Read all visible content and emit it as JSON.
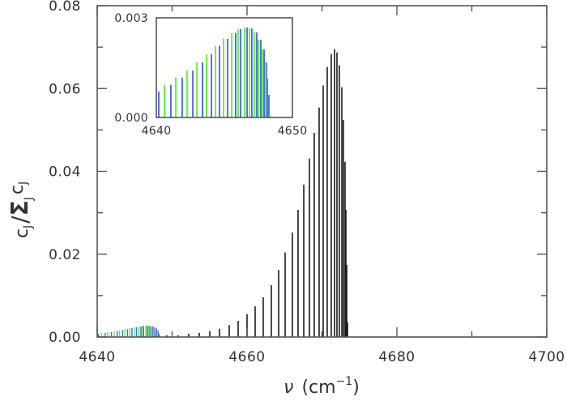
{
  "chart_data": {
    "type": "bar",
    "title": "",
    "xlabel": "ν (cm⁻¹)",
    "ylabel": "c_J / Σ_J c_J",
    "xlim": [
      4640,
      4700
    ],
    "ylim": [
      0.0,
      0.08
    ],
    "x_ticks": [
      4640,
      4660,
      4680,
      4700
    ],
    "x_tick_labels": [
      "4640",
      "4660",
      "4680",
      "4700"
    ],
    "x_minor_ticks": [
      4650,
      4670,
      4690
    ],
    "y_ticks": [
      0.0,
      0.02,
      0.04,
      0.06,
      0.08
    ],
    "y_tick_labels": [
      "0.00",
      "0.02",
      "0.04",
      "0.06",
      "0.08"
    ],
    "y_minor_ticks": [
      0.01,
      0.03,
      0.05,
      0.07
    ],
    "grid": false,
    "legend": null,
    "colors": {
      "main": "#1a1a1a",
      "series_blue": "#4a5ef0",
      "series_green": "#5aef3a",
      "overlap": "#1f8a6a",
      "axis": "#555555"
    },
    "series": [
      {
        "name": "main",
        "color": "#1a1a1a",
        "x": [
          4649.3,
          4650.81,
          4652.22,
          4653.62,
          4655.03,
          4656.32,
          4657.62,
          4658.81,
          4660.0,
          4661.08,
          4662.16,
          4663.24,
          4664.22,
          4665.08,
          4666.05,
          4666.81,
          4667.57,
          4668.32,
          4668.97,
          4669.62,
          4670.16,
          4670.7,
          4671.24,
          4671.68,
          4672.0,
          4672.32,
          4672.65,
          4672.86,
          4673.08,
          4673.19,
          4673.3,
          4673.41
        ],
        "values": [
          0.0004,
          0.0004,
          0.0008,
          0.001,
          0.0014,
          0.002,
          0.0029,
          0.0039,
          0.0055,
          0.0074,
          0.0096,
          0.0125,
          0.0162,
          0.0204,
          0.0252,
          0.0307,
          0.0368,
          0.0431,
          0.0493,
          0.0554,
          0.0607,
          0.0652,
          0.0683,
          0.0695,
          0.0687,
          0.0656,
          0.0603,
          0.0524,
          0.0423,
          0.0307,
          0.0174,
          0.0035
        ]
      },
      {
        "name": "blue",
        "color": "#4a5ef0",
        "x": [
          4640.18,
          4641.07,
          4641.9,
          4642.68,
          4643.39,
          4644.05,
          4644.64,
          4645.24,
          4645.83,
          4646.19,
          4646.67,
          4647.02,
          4647.38,
          4647.68,
          4647.92,
          4648.1,
          4648.15,
          4648.27
        ],
        "values": [
          0.00078,
          0.00098,
          0.0012,
          0.00141,
          0.00166,
          0.0019,
          0.00215,
          0.00237,
          0.00254,
          0.00266,
          0.00271,
          0.00268,
          0.00256,
          0.00234,
          0.00205,
          0.00166,
          0.00117,
          0.00068
        ]
      },
      {
        "name": "green",
        "color": "#5aef3a",
        "x": [
          4640.6,
          4641.43,
          4642.26,
          4642.98,
          4643.69,
          4644.35,
          4644.94,
          4645.54,
          4646.01,
          4646.49,
          4646.85,
          4647.2,
          4647.5,
          4647.8,
          4648.04,
          4648.33
        ],
        "values": [
          0.00098,
          0.0012,
          0.00141,
          0.00166,
          0.0019,
          0.00215,
          0.00237,
          0.00254,
          0.00266,
          0.00271,
          0.00268,
          0.00256,
          0.00234,
          0.00205,
          0.00166,
          0.00012
        ]
      }
    ],
    "inset": {
      "xlim": [
        4640,
        4650
      ],
      "ylim": [
        0.0,
        0.003
      ],
      "x_tick_labels": [
        "4640",
        "4650"
      ],
      "y_tick_labels": [
        "0.000",
        "0.003"
      ],
      "series_shown": [
        "blue",
        "green"
      ]
    }
  },
  "labels": {
    "y_axis": {
      "c": "c",
      "sub": "J",
      "slash": "/",
      "sigma": "Σ",
      "sigma_sub": "J",
      "c2": "c",
      "sub2": "J"
    },
    "x_axis": {
      "nu": "ν",
      "open": "(cm",
      "exp": "−1",
      "close": ")"
    }
  }
}
